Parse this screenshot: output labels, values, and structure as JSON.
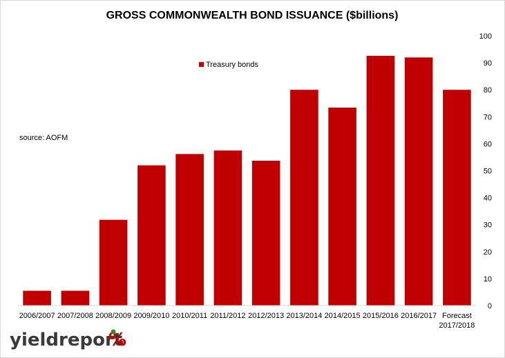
{
  "chart_data": {
    "type": "bar",
    "title": "GROSS COMMONWEALTH BOND ISSUANCE ($billions)",
    "categories": [
      [
        "2006/2007"
      ],
      [
        "2007/2008"
      ],
      [
        "2008/2009"
      ],
      [
        "2009/2010"
      ],
      [
        "2010/2011"
      ],
      [
        "2011/2012"
      ],
      [
        "2012/2013"
      ],
      [
        "2013/2014"
      ],
      [
        "2014/2015"
      ],
      [
        "2015/2016"
      ],
      [
        "2016/2017"
      ],
      [
        "Forecast",
        "2017/2018"
      ]
    ],
    "series": [
      {
        "name": "Treasury bonds",
        "color": "#c00000",
        "values": [
          5.5,
          5.5,
          31.8,
          52.0,
          56.2,
          57.5,
          53.7,
          80.0,
          73.4,
          92.6,
          92.0,
          80.0
        ]
      }
    ],
    "ylim": [
      0,
      100
    ],
    "yticks": [
      0,
      10,
      20,
      30,
      40,
      50,
      60,
      70,
      80,
      90,
      100
    ],
    "y_axis_side": "right",
    "grid": false,
    "legend_position": "top-center",
    "annotation": "source: AOFM"
  },
  "logo": {
    "dark_text": "yieldreport",
    "red_text": "%",
    "color_dark": "#3a3a3a",
    "color_red": "#c00000",
    "color_green": "#2e8b2e"
  }
}
